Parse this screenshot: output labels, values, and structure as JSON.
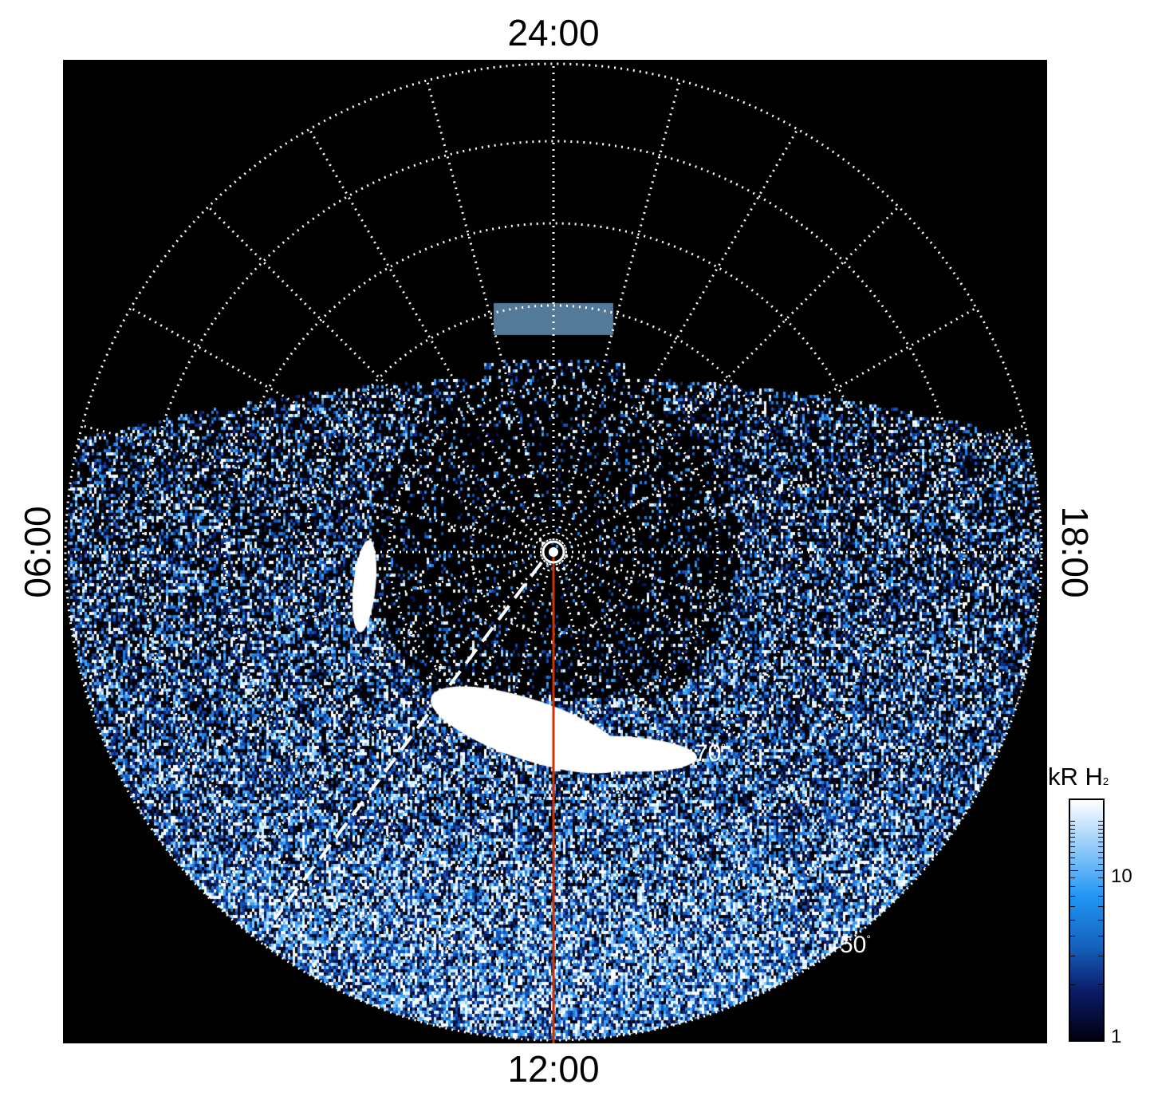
{
  "labels": {
    "top": "24:00",
    "bottom": "12:00",
    "left": "06:00",
    "right": "18:00"
  },
  "latitude_labels": {
    "lat70": "70",
    "lat50": "50",
    "degree": "°"
  },
  "colorbar": {
    "title_main": "kR H",
    "title_sub": "2",
    "scale": "log",
    "ticks": [
      "10",
      "1"
    ],
    "colors": [
      "#000010",
      "#0a1a66",
      "#1565c0",
      "#2196f3",
      "#90caf9",
      "#ffffff"
    ]
  },
  "colors": {
    "background": "#000000",
    "grid": "#ffffff",
    "meridian_line": "#cc3300",
    "dashed_track": "#ffffff"
  }
}
